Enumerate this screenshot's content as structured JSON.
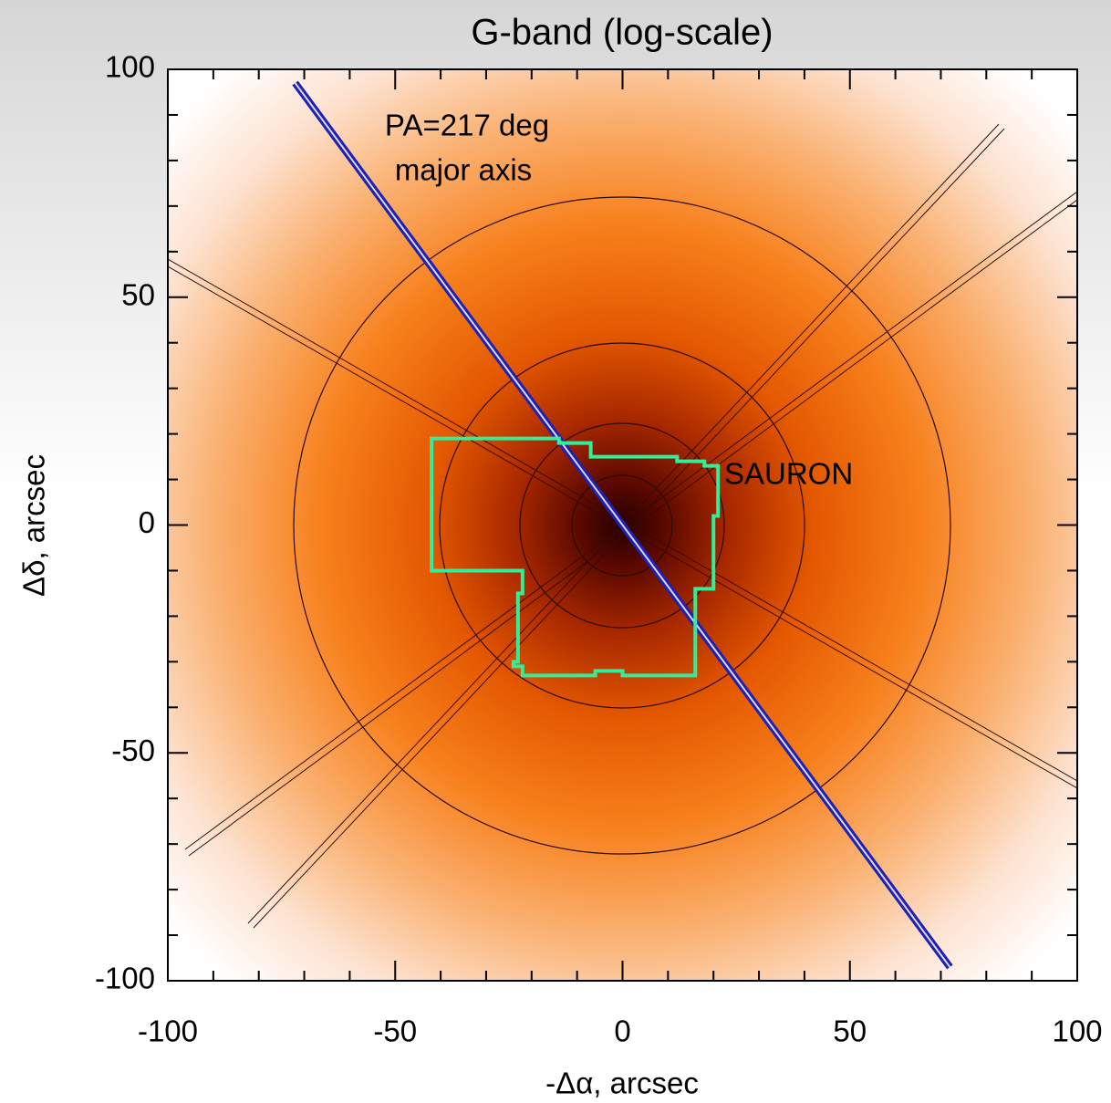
{
  "chart_data": {
    "type": "image",
    "title": "G-band (log-scale)",
    "xlabel": "-Δα, arcsec",
    "ylabel": "Δδ, arcsec",
    "xlim": [
      -100,
      100
    ],
    "ylim": [
      -100,
      100
    ],
    "xticks": [
      -100,
      -50,
      0,
      50,
      100
    ],
    "yticks": [
      -100,
      -50,
      0,
      50,
      100
    ],
    "annotations": [
      "PA=217 deg"
    ],
    "series": [
      {
        "name": "major axis",
        "color": "#2020b0",
        "x": [
          -72,
          72
        ],
        "y": [
          97,
          -97
        ]
      },
      {
        "name": "SAURON",
        "color": "#33ee99",
        "x": [
          -42,
          -14,
          -14,
          -7,
          -7,
          12,
          12,
          18,
          18,
          21,
          21,
          20,
          20,
          16,
          16,
          0,
          0,
          -6,
          -6,
          -22,
          -22,
          -24,
          -24,
          -23,
          -23,
          -22,
          -22,
          -42
        ],
        "y": [
          19,
          19,
          18,
          18,
          15,
          15,
          14,
          14,
          13,
          13,
          2,
          2,
          -14,
          -14,
          -33,
          -33,
          -32,
          -32,
          -33,
          -33,
          -31,
          -31,
          -30,
          -30,
          -15,
          -15,
          -10,
          -10
        ]
      }
    ]
  }
}
